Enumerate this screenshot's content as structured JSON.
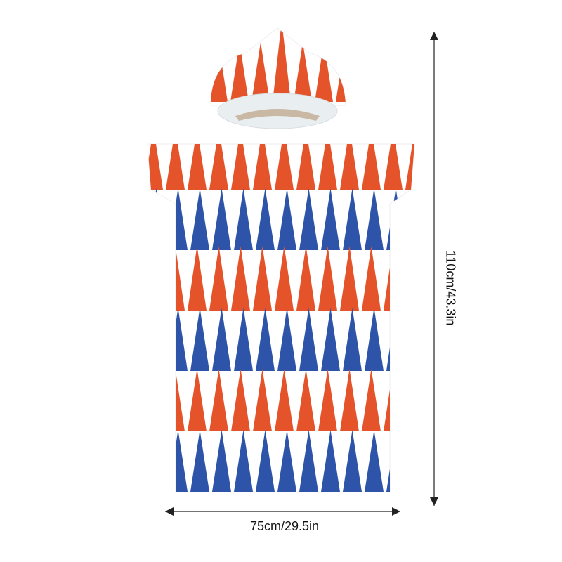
{
  "dimensions": {
    "height": "110cm/43.3in",
    "width": "75cm/29.5in"
  }
}
